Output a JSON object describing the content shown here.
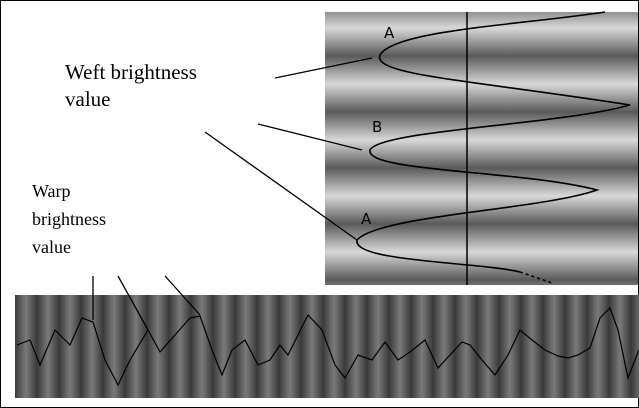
{
  "weft_label": [
    "Weft brightness",
    "value"
  ],
  "warp_label": [
    "Warp",
    "brightness",
    "value"
  ],
  "markers": [
    "A",
    "B",
    "A"
  ]
}
